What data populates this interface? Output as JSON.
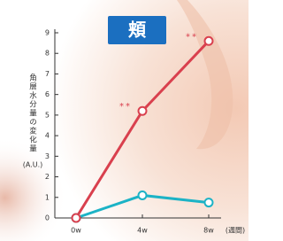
{
  "chart_data": {
    "type": "line",
    "badge": "頬",
    "y_label": "角層水分量の変化量",
    "y_unit": "(A.U.)",
    "x_label": "(週間)",
    "categories": [
      "0w",
      "4w",
      "8w"
    ],
    "series": [
      {
        "color": "#d9404e",
        "values": [
          0,
          5.2,
          8.6
        ]
      },
      {
        "color": "#1cb3c6",
        "values": [
          0,
          1.1,
          0.75
        ]
      }
    ],
    "annotations": [
      "**",
      "**"
    ],
    "ylim": [
      0,
      9
    ],
    "yticks": [
      0,
      1,
      2,
      3,
      4,
      5,
      6,
      7,
      8,
      9
    ]
  }
}
